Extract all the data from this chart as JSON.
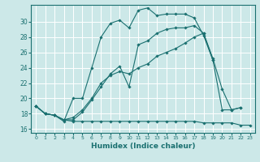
{
  "xlabel": "Humidex (Indice chaleur)",
  "bg_color": "#cce8e8",
  "grid_color": "#ffffff",
  "line_color": "#1a7070",
  "xlim": [
    -0.5,
    23.5
  ],
  "ylim": [
    15.5,
    32.2
  ],
  "xticks": [
    0,
    1,
    2,
    3,
    4,
    5,
    6,
    7,
    8,
    9,
    10,
    11,
    12,
    13,
    14,
    15,
    16,
    17,
    18,
    19,
    20,
    21,
    22,
    23
  ],
  "yticks": [
    16,
    18,
    20,
    22,
    24,
    26,
    28,
    30
  ],
  "curves": [
    [
      19.0,
      18.0,
      17.8,
      17.0,
      20.0,
      20.0,
      24.0,
      28.0,
      29.8,
      30.2,
      29.2,
      31.5,
      31.8,
      30.8,
      31.0,
      31.0,
      31.0,
      30.5,
      28.2,
      25.0,
      null,
      null,
      null,
      null
    ],
    [
      19.0,
      18.0,
      17.8,
      17.2,
      17.2,
      18.2,
      19.8,
      21.5,
      23.2,
      24.2,
      21.5,
      27.0,
      27.5,
      28.5,
      29.0,
      29.2,
      29.2,
      29.5,
      28.5,
      25.0,
      18.5,
      18.5,
      18.8,
      null
    ],
    [
      19.0,
      18.0,
      17.8,
      17.2,
      17.5,
      18.5,
      20.0,
      22.0,
      23.0,
      23.5,
      23.2,
      24.0,
      24.5,
      25.5,
      26.0,
      26.5,
      27.2,
      28.0,
      28.5,
      25.2,
      21.2,
      18.5,
      18.8,
      null
    ],
    [
      19.0,
      18.0,
      17.8,
      17.2,
      17.0,
      17.0,
      17.0,
      17.0,
      17.0,
      17.0,
      17.0,
      17.0,
      17.0,
      17.0,
      17.0,
      17.0,
      17.0,
      17.0,
      16.8,
      16.8,
      16.8,
      16.8,
      16.5,
      16.5
    ]
  ]
}
